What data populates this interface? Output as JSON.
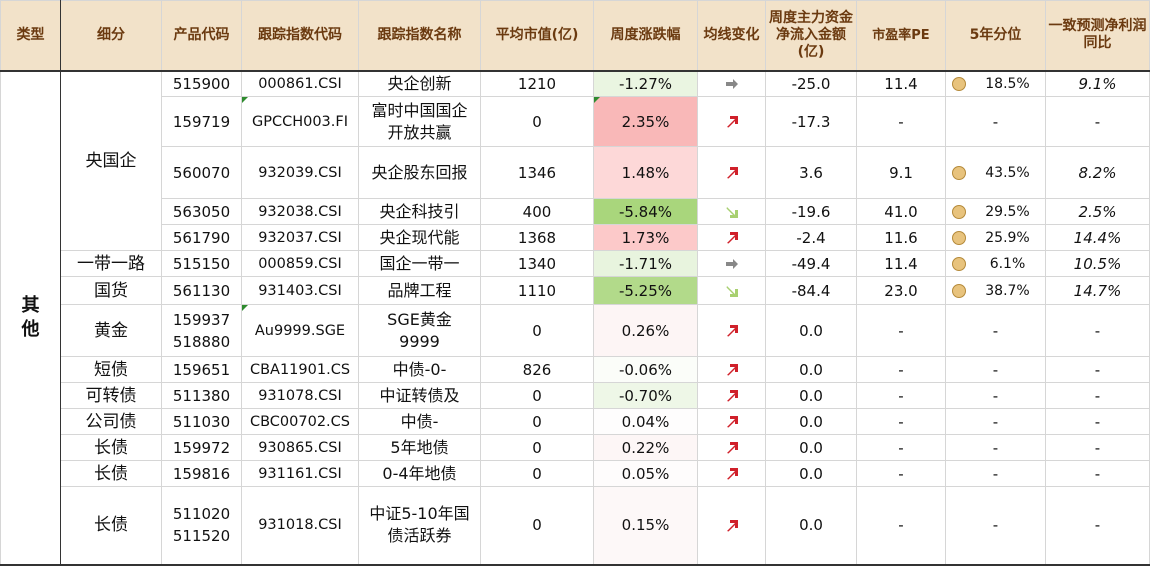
{
  "headers": {
    "type": "类型",
    "sub": "细分",
    "code": "产品代码",
    "idx_code": "跟踪指数代码",
    "idx_name": "跟踪指数名称",
    "mcap": "平均市值(亿)",
    "weekly": "周度涨跌幅",
    "ma": "均线变化",
    "flow": "周度主力资金净流入金额(亿)",
    "pe": "市盈率PE",
    "pctl": "5年分位",
    "profit": "一致预测净利润同比"
  },
  "type_label": "其他",
  "groups": {
    "yangqi": "央国企",
    "yidai": "一带一路",
    "guohuo": "国货",
    "huangjin": "黄金",
    "duanzhai": "短债",
    "kezhuanzhai": "可转债",
    "gongsizhai": "公司债",
    "changzhai1": "长债",
    "changzhai2": "长债",
    "changzhai3": "长债"
  },
  "rows": [
    {
      "code": "515900",
      "idx_code": "000861.CSI",
      "idx_name": "央企创新",
      "mcap": "1210",
      "weekly": "-1.27%",
      "ma": "flat",
      "flow": "-25.0",
      "pe": "11.4",
      "pctl": "18.5%",
      "profit": "9.1%"
    },
    {
      "code": "159719",
      "idx_code": "GPCCH003.FI",
      "idx_name": "富时中国国企开放共赢",
      "mcap": "0",
      "weekly": "2.35%",
      "ma": "up",
      "flow": "-17.3",
      "pe": "-",
      "pctl": "-",
      "profit": "-"
    },
    {
      "code": "560070",
      "idx_code": "932039.CSI",
      "idx_name": "央企股东回报",
      "mcap": "1346",
      "weekly": "1.48%",
      "ma": "up",
      "flow": "3.6",
      "pe": "9.1",
      "pctl": "43.5%",
      "profit": "8.2%"
    },
    {
      "code": "563050",
      "idx_code": "932038.CSI",
      "idx_name": "央企科技引",
      "mcap": "400",
      "weekly": "-5.84%",
      "ma": "down",
      "flow": "-19.6",
      "pe": "41.0",
      "pctl": "29.5%",
      "profit": "2.5%"
    },
    {
      "code": "561790",
      "idx_code": "932037.CSI",
      "idx_name": "央企现代能",
      "mcap": "1368",
      "weekly": "1.73%",
      "ma": "up",
      "flow": "-2.4",
      "pe": "11.6",
      "pctl": "25.9%",
      "profit": "14.4%"
    },
    {
      "code": "515150",
      "idx_code": "000859.CSI",
      "idx_name": "国企一带一",
      "mcap": "1340",
      "weekly": "-1.71%",
      "ma": "flat",
      "flow": "-49.4",
      "pe": "11.4",
      "pctl": "6.1%",
      "profit": "10.5%"
    },
    {
      "code": "561130",
      "idx_code": "931403.CSI",
      "idx_name": "品牌工程",
      "mcap": "1110",
      "weekly": "-5.25%",
      "ma": "down",
      "flow": "-84.4",
      "pe": "23.0",
      "pctl": "38.7%",
      "profit": "14.7%"
    },
    {
      "code": "159937",
      "code2": "518880",
      "idx_code": "Au9999.SGE",
      "idx_name": "SGE黄金9999",
      "mcap": "0",
      "weekly": "0.26%",
      "ma": "up",
      "flow": "0.0",
      "pe": "-",
      "pctl": "-",
      "profit": "-"
    },
    {
      "code": "159651",
      "idx_code": "CBA11901.CS",
      "idx_name": "中债-0-",
      "mcap": "826",
      "weekly": "-0.06%",
      "ma": "up",
      "flow": "0.0",
      "pe": "-",
      "pctl": "-",
      "profit": "-"
    },
    {
      "code": "511380",
      "idx_code": "931078.CSI",
      "idx_name": "中证转债及",
      "mcap": "0",
      "weekly": "-0.70%",
      "ma": "up",
      "flow": "0.0",
      "pe": "-",
      "pctl": "-",
      "profit": "-"
    },
    {
      "code": "511030",
      "idx_code": "CBC00702.CS",
      "idx_name": "中债-",
      "mcap": "0",
      "weekly": "0.04%",
      "ma": "up",
      "flow": "0.0",
      "pe": "-",
      "pctl": "-",
      "profit": "-"
    },
    {
      "code": "159972",
      "idx_code": "930865.CSI",
      "idx_name": "5年地债",
      "mcap": "0",
      "weekly": "0.22%",
      "ma": "up",
      "flow": "0.0",
      "pe": "-",
      "pctl": "-",
      "profit": "-"
    },
    {
      "code": "159816",
      "idx_code": "931161.CSI",
      "idx_name": "0-4年地债",
      "mcap": "0",
      "weekly": "0.05%",
      "ma": "up",
      "flow": "0.0",
      "pe": "-",
      "pctl": "-",
      "profit": "-"
    },
    {
      "code": "511020",
      "code2": "511520",
      "idx_code": "931018.CSI",
      "idx_name": "中证5-10年国债活跃券",
      "mcap": "0",
      "weekly": "0.15%",
      "ma": "up",
      "flow": "0.0",
      "pe": "-",
      "pctl": "-",
      "profit": "-"
    }
  ],
  "colors": {
    "header_bg": "#f2e2c9",
    "header_text": "#6b3a10",
    "arrow_up": "#d0202a",
    "arrow_flat": "#888888",
    "arrow_down": "#a8d070",
    "dot": "#e8c37d"
  },
  "icons": {
    "up": "arrow-up-right-icon",
    "flat": "arrow-right-icon",
    "down": "arrow-down-right-icon",
    "pctl": "circle-dot-icon"
  }
}
